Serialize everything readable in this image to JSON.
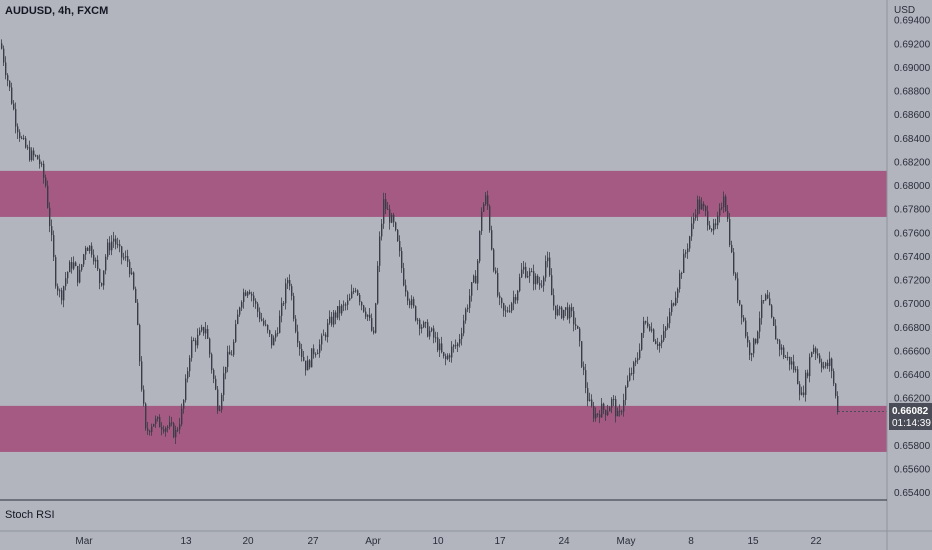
{
  "header": {
    "title": "AUDUSD, 4h, FXCM",
    "currency": "USD"
  },
  "indicator_label": "Stoch RSI",
  "last_price": {
    "value": "0.66082",
    "countdown": "01:14:39"
  },
  "colors": {
    "background": "#b2b5be",
    "zone": "#9c2a64",
    "candle": "#3a3d47",
    "last_price_bg": "#4a4d57"
  },
  "chart_data": {
    "type": "candlestick",
    "title": "AUDUSD, 4h, FXCM",
    "ylabel": "USD",
    "ylim": [
      0.6535,
      0.6955
    ],
    "price_ticks": [
      "0.69400",
      "0.69200",
      "0.69000",
      "0.68800",
      "0.68600",
      "0.68400",
      "0.68200",
      "0.68000",
      "0.67800",
      "0.67600",
      "0.67400",
      "0.67200",
      "0.67000",
      "0.66800",
      "0.66600",
      "0.66400",
      "0.66200",
      "0.66000",
      "0.65800",
      "0.65600",
      "0.65400"
    ],
    "time_ticks": [
      "Mar",
      "13",
      "20",
      "27",
      "Apr",
      "10",
      "17",
      "24",
      "May",
      "8",
      "15",
      "22"
    ],
    "zones": [
      {
        "from": 0.6773,
        "to": 0.6812
      },
      {
        "from": 0.6574,
        "to": 0.6613
      }
    ],
    "path": [
      [
        0,
        0.692
      ],
      [
        8,
        0.6885
      ],
      [
        15,
        0.6855
      ],
      [
        22,
        0.6835
      ],
      [
        30,
        0.6825
      ],
      [
        38,
        0.6822
      ],
      [
        45,
        0.68
      ],
      [
        50,
        0.676
      ],
      [
        55,
        0.672
      ],
      [
        60,
        0.6705
      ],
      [
        66,
        0.6725
      ],
      [
        72,
        0.6735
      ],
      [
        78,
        0.672
      ],
      [
        85,
        0.675
      ],
      [
        92,
        0.6745
      ],
      [
        100,
        0.6715
      ],
      [
        106,
        0.6745
      ],
      [
        113,
        0.6755
      ],
      [
        120,
        0.674
      ],
      [
        128,
        0.6735
      ],
      [
        135,
        0.67
      ],
      [
        140,
        0.664
      ],
      [
        145,
        0.659
      ],
      [
        152,
        0.66
      ],
      [
        160,
        0.6598
      ],
      [
        168,
        0.6595
      ],
      [
        175,
        0.659
      ],
      [
        182,
        0.661
      ],
      [
        190,
        0.6665
      ],
      [
        197,
        0.667
      ],
      [
        205,
        0.668
      ],
      [
        212,
        0.664
      ],
      [
        218,
        0.661
      ],
      [
        225,
        0.665
      ],
      [
        232,
        0.666
      ],
      [
        240,
        0.6705
      ],
      [
        248,
        0.6715
      ],
      [
        256,
        0.6695
      ],
      [
        264,
        0.668
      ],
      [
        272,
        0.6665
      ],
      [
        280,
        0.669
      ],
      [
        288,
        0.6725
      ],
      [
        294,
        0.6685
      ],
      [
        300,
        0.666
      ],
      [
        306,
        0.6645
      ],
      [
        313,
        0.666
      ],
      [
        320,
        0.6665
      ],
      [
        327,
        0.668
      ],
      [
        334,
        0.669
      ],
      [
        341,
        0.6695
      ],
      [
        348,
        0.67
      ],
      [
        355,
        0.6715
      ],
      [
        361,
        0.67
      ],
      [
        367,
        0.669
      ],
      [
        373,
        0.667
      ],
      [
        378,
        0.6745
      ],
      [
        383,
        0.6785
      ],
      [
        388,
        0.6775
      ],
      [
        393,
        0.6765
      ],
      [
        398,
        0.6745
      ],
      [
        403,
        0.672
      ],
      [
        408,
        0.6705
      ],
      [
        415,
        0.669
      ],
      [
        422,
        0.668
      ],
      [
        430,
        0.6675
      ],
      [
        437,
        0.6665
      ],
      [
        444,
        0.665
      ],
      [
        450,
        0.666
      ],
      [
        457,
        0.6665
      ],
      [
        464,
        0.669
      ],
      [
        470,
        0.671
      ],
      [
        476,
        0.6725
      ],
      [
        481,
        0.678
      ],
      [
        486,
        0.679
      ],
      [
        492,
        0.674
      ],
      [
        498,
        0.67
      ],
      [
        504,
        0.669
      ],
      [
        510,
        0.67
      ],
      [
        516,
        0.671
      ],
      [
        522,
        0.673
      ],
      [
        528,
        0.6725
      ],
      [
        534,
        0.672
      ],
      [
        540,
        0.6715
      ],
      [
        546,
        0.674
      ],
      [
        552,
        0.67
      ],
      [
        558,
        0.669
      ],
      [
        564,
        0.6695
      ],
      [
        570,
        0.669
      ],
      [
        576,
        0.668
      ],
      [
        582,
        0.6645
      ],
      [
        588,
        0.6615
      ],
      [
        594,
        0.6605
      ],
      [
        600,
        0.661
      ],
      [
        606,
        0.661
      ],
      [
        612,
        0.6618
      ],
      [
        618,
        0.66
      ],
      [
        624,
        0.6625
      ],
      [
        630,
        0.664
      ],
      [
        636,
        0.665
      ],
      [
        642,
        0.668
      ],
      [
        648,
        0.6685
      ],
      [
        654,
        0.667
      ],
      [
        660,
        0.6665
      ],
      [
        666,
        0.668
      ],
      [
        672,
        0.67
      ],
      [
        678,
        0.672
      ],
      [
        684,
        0.674
      ],
      [
        690,
        0.676
      ],
      [
        696,
        0.6785
      ],
      [
        702,
        0.678
      ],
      [
        708,
        0.677
      ],
      [
        714,
        0.676
      ],
      [
        719,
        0.6775
      ],
      [
        723,
        0.6795
      ],
      [
        727,
        0.677
      ],
      [
        731,
        0.674
      ],
      [
        736,
        0.671
      ],
      [
        742,
        0.669
      ],
      [
        748,
        0.666
      ],
      [
        754,
        0.6665
      ],
      [
        760,
        0.6695
      ],
      [
        766,
        0.6705
      ],
      [
        772,
        0.668
      ],
      [
        778,
        0.6665
      ],
      [
        784,
        0.6655
      ],
      [
        790,
        0.665
      ],
      [
        796,
        0.664
      ],
      [
        801,
        0.662
      ],
      [
        806,
        0.664
      ],
      [
        812,
        0.6665
      ],
      [
        818,
        0.6655
      ],
      [
        824,
        0.6645
      ],
      [
        830,
        0.665
      ],
      [
        835,
        0.662
      ],
      [
        838,
        0.6608
      ]
    ]
  }
}
